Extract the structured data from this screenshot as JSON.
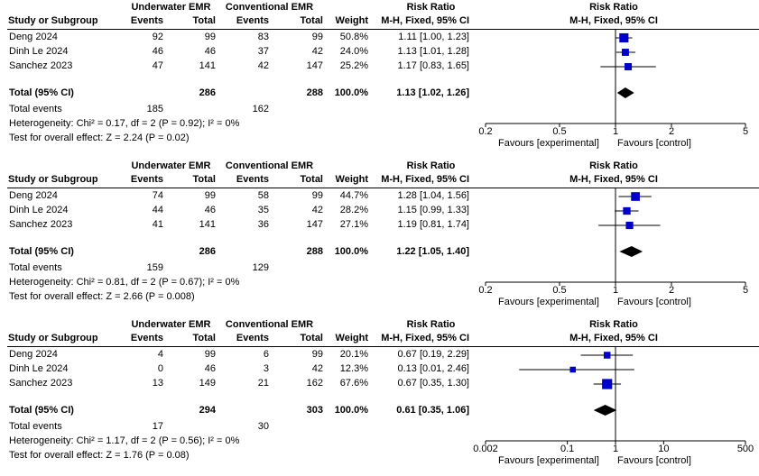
{
  "colors": {
    "box": "#0000cc",
    "diamond": "#000000",
    "line": "#000000"
  },
  "headers": {
    "group1": "Underwater EMR",
    "group2": "Conventional EMR",
    "study": "Study or Subgroup",
    "events": "Events",
    "total": "Total",
    "weight": "Weight",
    "rr_title": "Risk Ratio",
    "rr_method": "M-H, Fixed, 95% CI",
    "plot_title": "Risk Ratio",
    "plot_method": "M-H, Fixed, 95% CI"
  },
  "panels": [
    {
      "studies": [
        {
          "name": "Deng 2024",
          "e1": "92",
          "n1": "99",
          "e2": "83",
          "n2": "99",
          "weight": "50.8%",
          "rr": "1.11 [1.00, 1.23]"
        },
        {
          "name": "Dinh Le 2024",
          "e1": "46",
          "n1": "46",
          "e2": "37",
          "n2": "42",
          "weight": "24.0%",
          "rr": "1.13 [1.01, 1.28]"
        },
        {
          "name": "Sanchez 2023",
          "e1": "47",
          "n1": "141",
          "e2": "42",
          "n2": "147",
          "weight": "25.2%",
          "rr": "1.17 [0.83, 1.65]"
        }
      ],
      "total": {
        "label": "Total (95% CI)",
        "n1": "286",
        "n2": "288",
        "weight": "100.0%",
        "rr": "1.13 [1.02, 1.26]"
      },
      "total_events": {
        "label": "Total events",
        "e1": "185",
        "e2": "162"
      },
      "heterogeneity": "Heterogeneity: Chi² = 0.17, df = 2 (P = 0.92); I² = 0%",
      "overall": "Test for overall effect: Z = 2.24 (P = 0.02)",
      "axis": {
        "ticks": [
          "0.2",
          "0.5",
          "1",
          "2",
          "5"
        ],
        "favours_left": "Favours [experimental]",
        "favours_right": "Favours [control]"
      }
    },
    {
      "studies": [
        {
          "name": "Deng 2024",
          "e1": "74",
          "n1": "99",
          "e2": "58",
          "n2": "99",
          "weight": "44.7%",
          "rr": "1.28 [1.04, 1.56]"
        },
        {
          "name": "Dinh Le 2024",
          "e1": "44",
          "n1": "46",
          "e2": "35",
          "n2": "42",
          "weight": "28.2%",
          "rr": "1.15 [0.99, 1.33]"
        },
        {
          "name": "Sanchez 2023",
          "e1": "41",
          "n1": "141",
          "e2": "36",
          "n2": "147",
          "weight": "27.1%",
          "rr": "1.19 [0.81, 1.74]"
        }
      ],
      "total": {
        "label": "Total (95% CI)",
        "n1": "286",
        "n2": "288",
        "weight": "100.0%",
        "rr": "1.22 [1.05, 1.40]"
      },
      "total_events": {
        "label": "Total events",
        "e1": "159",
        "e2": "129"
      },
      "heterogeneity": "Heterogeneity: Chi² = 0.81, df = 2 (P = 0.67); I² = 0%",
      "overall": "Test for overall effect: Z = 2.66 (P = 0.008)",
      "axis": {
        "ticks": [
          "0.2",
          "0.5",
          "1",
          "2",
          "5"
        ],
        "favours_left": "Favours [experimental]",
        "favours_right": "Favours [control]"
      }
    },
    {
      "studies": [
        {
          "name": "Deng 2024",
          "e1": "4",
          "n1": "99",
          "e2": "6",
          "n2": "99",
          "weight": "20.1%",
          "rr": "0.67 [0.19, 2.29]"
        },
        {
          "name": "Dinh Le 2024",
          "e1": "0",
          "n1": "46",
          "e2": "3",
          "n2": "42",
          "weight": "12.3%",
          "rr": "0.13 [0.01, 2.46]"
        },
        {
          "name": "Sanchez 2023",
          "e1": "13",
          "n1": "149",
          "e2": "21",
          "n2": "162",
          "weight": "67.6%",
          "rr": "0.67 [0.35, 1.30]"
        }
      ],
      "total": {
        "label": "Total (95% CI)",
        "n1": "294",
        "n2": "303",
        "weight": "100.0%",
        "rr": "0.61 [0.35, 1.06]"
      },
      "total_events": {
        "label": "Total events",
        "e1": "17",
        "e2": "30"
      },
      "heterogeneity": "Heterogeneity: Chi² = 1.17, df = 2 (P = 0.56); I² = 0%",
      "overall": "Test for overall effect: Z = 1.76 (P = 0.08)",
      "axis": {
        "ticks": [
          "0.002",
          "0.1",
          "1",
          "10",
          "500"
        ],
        "favours_left": "Favours [experimental]",
        "favours_right": "Favours [control]"
      }
    }
  ],
  "chart_data": [
    {
      "type": "forest",
      "scale": "log",
      "xlim": [
        0.2,
        5
      ],
      "ticks": [
        0.2,
        0.5,
        1,
        2,
        5
      ],
      "studies": [
        {
          "name": "Deng 2024",
          "rr": 1.11,
          "lo": 1.0,
          "hi": 1.23,
          "weight": 50.8
        },
        {
          "name": "Dinh Le 2024",
          "rr": 1.13,
          "lo": 1.01,
          "hi": 1.28,
          "weight": 24.0
        },
        {
          "name": "Sanchez 2023",
          "rr": 1.17,
          "lo": 0.83,
          "hi": 1.65,
          "weight": 25.2
        }
      ],
      "pooled": {
        "rr": 1.13,
        "lo": 1.02,
        "hi": 1.26
      }
    },
    {
      "type": "forest",
      "scale": "log",
      "xlim": [
        0.2,
        5
      ],
      "ticks": [
        0.2,
        0.5,
        1,
        2,
        5
      ],
      "studies": [
        {
          "name": "Deng 2024",
          "rr": 1.28,
          "lo": 1.04,
          "hi": 1.56,
          "weight": 44.7
        },
        {
          "name": "Dinh Le 2024",
          "rr": 1.15,
          "lo": 0.99,
          "hi": 1.33,
          "weight": 28.2
        },
        {
          "name": "Sanchez 2023",
          "rr": 1.19,
          "lo": 0.81,
          "hi": 1.74,
          "weight": 27.1
        }
      ],
      "pooled": {
        "rr": 1.22,
        "lo": 1.05,
        "hi": 1.4
      }
    },
    {
      "type": "forest",
      "scale": "log",
      "xlim": [
        0.002,
        500
      ],
      "ticks": [
        0.002,
        0.1,
        1,
        10,
        500
      ],
      "studies": [
        {
          "name": "Deng 2024",
          "rr": 0.67,
          "lo": 0.19,
          "hi": 2.29,
          "weight": 20.1
        },
        {
          "name": "Dinh Le 2024",
          "rr": 0.13,
          "lo": 0.01,
          "hi": 2.46,
          "weight": 12.3
        },
        {
          "name": "Sanchez 2023",
          "rr": 0.67,
          "lo": 0.35,
          "hi": 1.3,
          "weight": 67.6
        }
      ],
      "pooled": {
        "rr": 0.61,
        "lo": 0.35,
        "hi": 1.06
      }
    }
  ]
}
